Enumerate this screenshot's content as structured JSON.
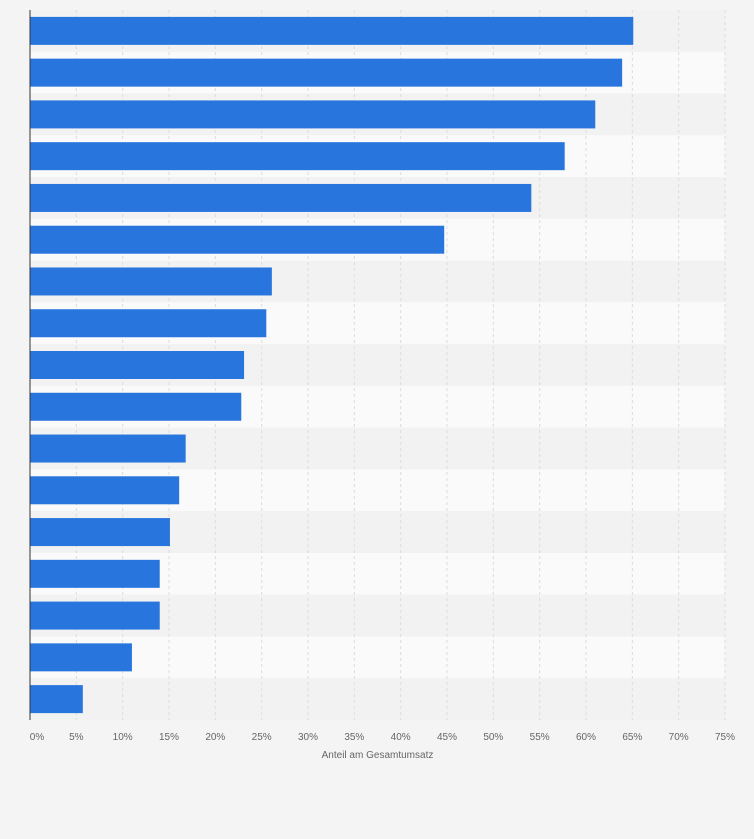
{
  "chart_data": {
    "type": "bar",
    "orientation": "horizontal",
    "title": "",
    "xlabel": "Anteil am Gesamtumsatz",
    "ylabel": "",
    "xlim": [
      0,
      75
    ],
    "x_ticks": [
      0,
      5,
      10,
      15,
      20,
      25,
      30,
      35,
      40,
      45,
      50,
      55,
      60,
      65,
      70,
      75
    ],
    "x_tick_labels": [
      "0%",
      "5%",
      "10%",
      "15%",
      "20%",
      "25%",
      "30%",
      "35%",
      "40%",
      "45%",
      "50%",
      "55%",
      "60%",
      "65%",
      "70%",
      "75%"
    ],
    "grid": true,
    "category_labels_visible": false,
    "values": [
      65.1,
      63.9,
      61.0,
      57.7,
      54.1,
      44.7,
      26.1,
      25.5,
      23.1,
      22.8,
      16.8,
      16.1,
      15.1,
      14.0,
      14.0,
      11.0,
      5.7
    ],
    "bar_color": "#2876dd",
    "stripe_colors": [
      "#f2f2f2",
      "#fafafa"
    ],
    "grid_color": "#dcdcdc",
    "axis_color": "#333333",
    "background_color": "#f4f4f4"
  }
}
